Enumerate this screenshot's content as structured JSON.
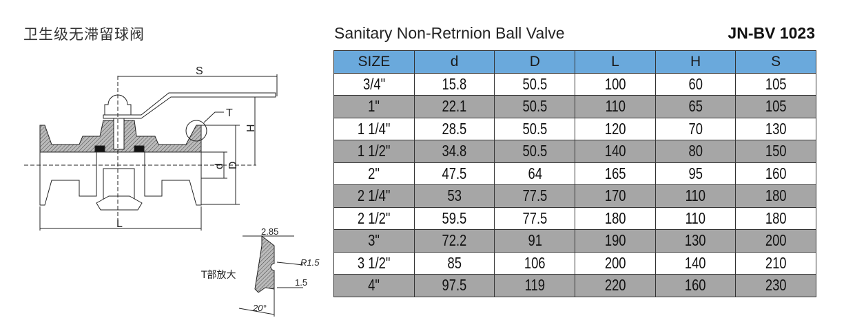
{
  "title_cn": "卫生级无滞留球阀",
  "title_en": "Sanitary Non-Retrnion Ball Valve",
  "model": "JN-BV 1023",
  "drawing": {
    "labels": {
      "S": "S",
      "H": "H",
      "T": "T",
      "d": "d",
      "D": "D",
      "L": "L"
    },
    "detail": {
      "caption": "T部放大",
      "width": "2.85",
      "radius": "R1.5",
      "depth": "1.5",
      "angle": "20°"
    }
  },
  "table": {
    "header_color": "#6aa9dc",
    "alt_row_color": "#a6a6a6",
    "columns": [
      "SIZE",
      "d",
      "D",
      "L",
      "H",
      "S"
    ],
    "rows": [
      [
        "3/4\"",
        "15.8",
        "50.5",
        "100",
        "60",
        "105"
      ],
      [
        "1\"",
        "22.1",
        "50.5",
        "110",
        "65",
        "105"
      ],
      [
        "1 1/4\"",
        "28.5",
        "50.5",
        "120",
        "70",
        "130"
      ],
      [
        "1 1/2\"",
        "34.8",
        "50.5",
        "140",
        "80",
        "150"
      ],
      [
        "2\"",
        "47.5",
        "64",
        "165",
        "95",
        "160"
      ],
      [
        "2 1/4\"",
        "53",
        "77.5",
        "170",
        "110",
        "180"
      ],
      [
        "2 1/2\"",
        "59.5",
        "77.5",
        "180",
        "110",
        "180"
      ],
      [
        "3\"",
        "72.2",
        "91",
        "190",
        "130",
        "200"
      ],
      [
        "3 1/2\"",
        "85",
        "106",
        "200",
        "140",
        "210"
      ],
      [
        "4\"",
        "97.5",
        "119",
        "220",
        "160",
        "230"
      ]
    ]
  }
}
